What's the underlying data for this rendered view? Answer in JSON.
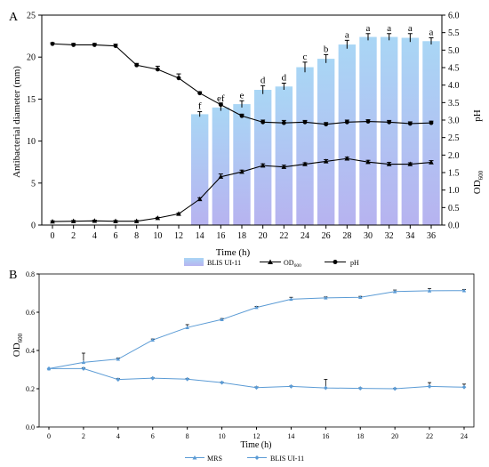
{
  "panels": {
    "a": {
      "label": "A"
    },
    "b": {
      "label": "B"
    }
  },
  "chart_data": [
    {
      "type": "bar",
      "panel": "A",
      "xlabel": "Time (h)",
      "x": [
        0,
        2,
        4,
        6,
        8,
        10,
        12,
        14,
        16,
        18,
        20,
        22,
        24,
        26,
        28,
        30,
        32,
        34,
        36
      ],
      "xticks": [
        0,
        2,
        4,
        6,
        8,
        10,
        12,
        14,
        16,
        18,
        20,
        22,
        24,
        26,
        28,
        30,
        32,
        34,
        36
      ],
      "ylabel_left": "Antibacterial diameter (mm)",
      "ylim_left": [
        0,
        25
      ],
      "yticks_left": [
        0,
        5,
        10,
        15,
        20,
        25
      ],
      "ylabel_right_ph": "pH",
      "ylabel_right_od_base": "OD",
      "ylabel_right_od_sub": "600",
      "ylim_right": [
        0,
        6
      ],
      "yticks_right": [
        "0.0",
        "0.5",
        "1.0",
        "1.5",
        "2.0",
        "2.5",
        "3.0",
        "3.5",
        "4.0",
        "4.5",
        "5.0",
        "5.5",
        "6.0"
      ],
      "bar_color_top": "#a9d6f5",
      "bar_color_bottom": "#b7b3f0",
      "series": [
        {
          "name": "BLIS UI-11",
          "axis": "left",
          "style": "bar",
          "x": [
            14,
            16,
            18,
            20,
            22,
            24,
            26,
            28,
            30,
            32,
            34,
            36
          ],
          "values": [
            13.2,
            14.0,
            14.4,
            16.1,
            16.5,
            18.8,
            19.8,
            21.5,
            22.4,
            22.4,
            22.3,
            21.9
          ],
          "errors": [
            0.3,
            0.4,
            0.4,
            0.5,
            0.4,
            0.6,
            0.5,
            0.5,
            0.4,
            0.4,
            0.5,
            0.4
          ],
          "letters": [
            "f",
            "ef",
            "e",
            "d",
            "d",
            "c",
            "b",
            "a",
            "a",
            "a",
            "a",
            "a"
          ]
        },
        {
          "name_base": "OD",
          "name_sub": "600",
          "axis": "right",
          "style": "line",
          "marker": "triangle",
          "values": [
            0.1,
            0.11,
            0.12,
            0.11,
            0.11,
            0.2,
            0.32,
            0.74,
            1.38,
            1.52,
            1.7,
            1.66,
            1.74,
            1.82,
            1.9,
            1.8,
            1.74,
            1.74,
            1.79
          ],
          "errors": [
            0.02,
            0.02,
            0.02,
            0.02,
            0.02,
            0.02,
            0.02,
            0.04,
            0.08,
            0.05,
            0.05,
            0.05,
            0.04,
            0.05,
            0.04,
            0.05,
            0.05,
            0.04,
            0.05
          ]
        },
        {
          "name": "pH",
          "axis": "right",
          "style": "line",
          "marker": "circle",
          "values": [
            5.18,
            5.15,
            5.15,
            5.12,
            4.57,
            4.45,
            4.2,
            3.77,
            3.44,
            3.12,
            2.94,
            2.92,
            2.94,
            2.88,
            2.94,
            2.96,
            2.94,
            2.9,
            2.92
          ],
          "errors": [
            0.03,
            0.04,
            0.04,
            0.05,
            0.05,
            0.09,
            0.12,
            0.04,
            0.05,
            0.05,
            0.06,
            0.07,
            0.05,
            0.05,
            0.06,
            0.05,
            0.05,
            0.05,
            0.05
          ]
        }
      ]
    },
    {
      "type": "line",
      "panel": "B",
      "xlabel": "Time (h)",
      "x": [
        0,
        2,
        4,
        6,
        8,
        10,
        12,
        14,
        16,
        18,
        20,
        22,
        24
      ],
      "xticks": [
        0,
        2,
        4,
        6,
        8,
        10,
        12,
        14,
        16,
        18,
        20,
        22,
        24
      ],
      "ylabel_base": "OD",
      "ylabel_sub": "600",
      "ylim": [
        0,
        0.8
      ],
      "yticks": [
        "0.0",
        "0.2",
        "0.4",
        "0.6",
        "0.8"
      ],
      "line_color": "#5b9bd5",
      "series": [
        {
          "name": "MRS",
          "marker": "triangle",
          "values": [
            0.305,
            0.338,
            0.355,
            0.455,
            0.52,
            0.562,
            0.625,
            0.668,
            0.675,
            0.678,
            0.708,
            0.712,
            0.713
          ],
          "errors": [
            0.0,
            0.048,
            0.005,
            0.005,
            0.015,
            0.005,
            0.005,
            0.01,
            0.005,
            0.005,
            0.008,
            0.012,
            0.006
          ]
        },
        {
          "name": "BLIS UI-11",
          "marker": "diamond",
          "values": [
            0.305,
            0.305,
            0.248,
            0.255,
            0.25,
            0.232,
            0.206,
            0.212,
            0.204,
            0.202,
            0.2,
            0.212,
            0.208
          ],
          "errors": [
            0.0,
            0.005,
            0.005,
            0.003,
            0.004,
            0.003,
            0.004,
            0.003,
            0.045,
            0.003,
            0.003,
            0.02,
            0.016
          ]
        }
      ]
    }
  ]
}
